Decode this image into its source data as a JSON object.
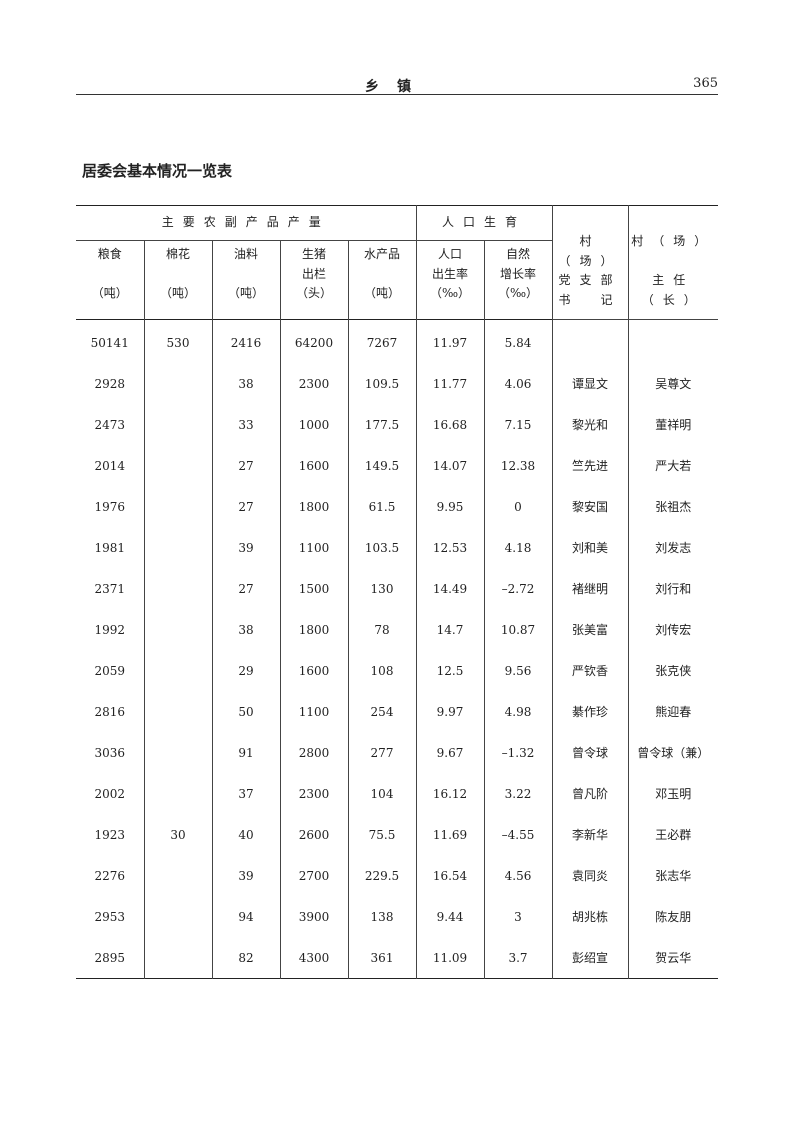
{
  "running_head": {
    "section": "乡镇",
    "page": "365"
  },
  "title": "居委会基本情况一览表",
  "header": {
    "group1": "主要农副产品产量",
    "group2": "人口生育",
    "cols": [
      {
        "lines": [
          "粮食",
          "",
          "（吨）"
        ]
      },
      {
        "lines": [
          "棉花",
          "",
          "（吨）"
        ]
      },
      {
        "lines": [
          "油料",
          "",
          "（吨）"
        ]
      },
      {
        "lines": [
          "生猪",
          "出栏",
          "（头）"
        ]
      },
      {
        "lines": [
          "水产品",
          "",
          "（吨）"
        ]
      },
      {
        "lines": [
          "人口",
          "出生率",
          "（‰）"
        ]
      },
      {
        "lines": [
          "自然",
          "增长率",
          "（‰）"
        ]
      }
    ],
    "secretary": [
      "村（场）",
      "党支部",
      "书　记"
    ],
    "director": [
      "村（场）",
      "",
      "主任（长）"
    ]
  },
  "rows": [
    [
      "50141",
      "530",
      "2416",
      "64200",
      "7267",
      "11.97",
      "5.84",
      "",
      ""
    ],
    [
      "2928",
      "",
      "38",
      "2300",
      "109.5",
      "11.77",
      "4.06",
      "谭显文",
      "吴尊文"
    ],
    [
      "2473",
      "",
      "33",
      "1000",
      "177.5",
      "16.68",
      "7.15",
      "黎光和",
      "董祥明"
    ],
    [
      "2014",
      "",
      "27",
      "1600",
      "149.5",
      "14.07",
      "12.38",
      "竺先进",
      "严大若"
    ],
    [
      "1976",
      "",
      "27",
      "1800",
      "61.5",
      "9.95",
      "0",
      "黎安国",
      "张祖杰"
    ],
    [
      "1981",
      "",
      "39",
      "1100",
      "103.5",
      "12.53",
      "4.18",
      "刘和美",
      "刘发志"
    ],
    [
      "2371",
      "",
      "27",
      "1500",
      "130",
      "14.49",
      "–2.72",
      "褚继明",
      "刘行和"
    ],
    [
      "1992",
      "",
      "38",
      "1800",
      "78",
      "14.7",
      "10.87",
      "张美富",
      "刘传宏"
    ],
    [
      "2059",
      "",
      "29",
      "1600",
      "108",
      "12.5",
      "9.56",
      "严钦香",
      "张克侠"
    ],
    [
      "2816",
      "",
      "50",
      "1100",
      "254",
      "9.97",
      "4.98",
      "綦作珍",
      "熊迎春"
    ],
    [
      "3036",
      "",
      "91",
      "2800",
      "277",
      "9.67",
      "–1.32",
      "曾令球",
      "曾令球（兼）"
    ],
    [
      "2002",
      "",
      "37",
      "2300",
      "104",
      "16.12",
      "3.22",
      "曾凡阶",
      "邓玉明"
    ],
    [
      "1923",
      "30",
      "40",
      "2600",
      "75.5",
      "11.69",
      "–4.55",
      "李新华",
      "王必群"
    ],
    [
      "2276",
      "",
      "39",
      "2700",
      "229.5",
      "16.54",
      "4.56",
      "袁同炎",
      "张志华"
    ],
    [
      "2953",
      "",
      "94",
      "3900",
      "138",
      "9.44",
      "3",
      "胡兆栋",
      "陈友朋"
    ],
    [
      "2895",
      "",
      "82",
      "4300",
      "361",
      "11.09",
      "3.7",
      "彭绍宣",
      "贺云华"
    ]
  ]
}
